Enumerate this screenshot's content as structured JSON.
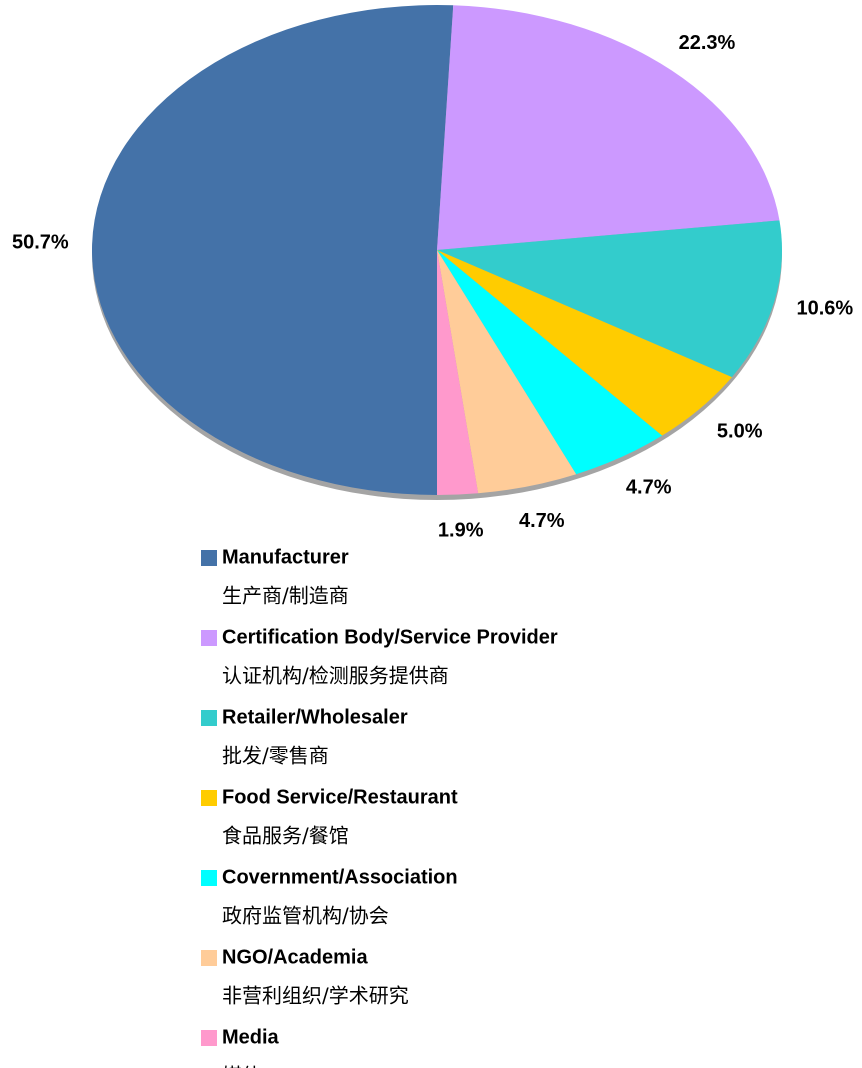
{
  "chart_data": {
    "type": "pie",
    "categories": [
      "Manufacturer",
      "Certification Body/Service Provider",
      "Retailer/Wholesaler",
      "Food Service/Restaurant",
      "Covernment/Association",
      "NGO/Academia",
      "Media"
    ],
    "categories_zh": [
      "生产商/制造商",
      "认证机构/检测服务提供商",
      "批发/零售商",
      "食品服务/餐馆",
      "政府监管机构/协会",
      "非营利组织/学术研究",
      "媒体"
    ],
    "values": [
      50.7,
      22.3,
      10.6,
      5.0,
      4.7,
      4.7,
      1.9
    ],
    "value_labels": [
      "50.7%",
      "22.3%",
      "10.6%",
      "5.0%",
      "4.7%",
      "4.7%",
      "1.9%"
    ],
    "colors": [
      "#4472a8",
      "#cc99ff",
      "#33cccc",
      "#ffcc00",
      "#00ffff",
      "#ffcc99",
      "#ff99cc"
    ],
    "legend": "bottom"
  }
}
